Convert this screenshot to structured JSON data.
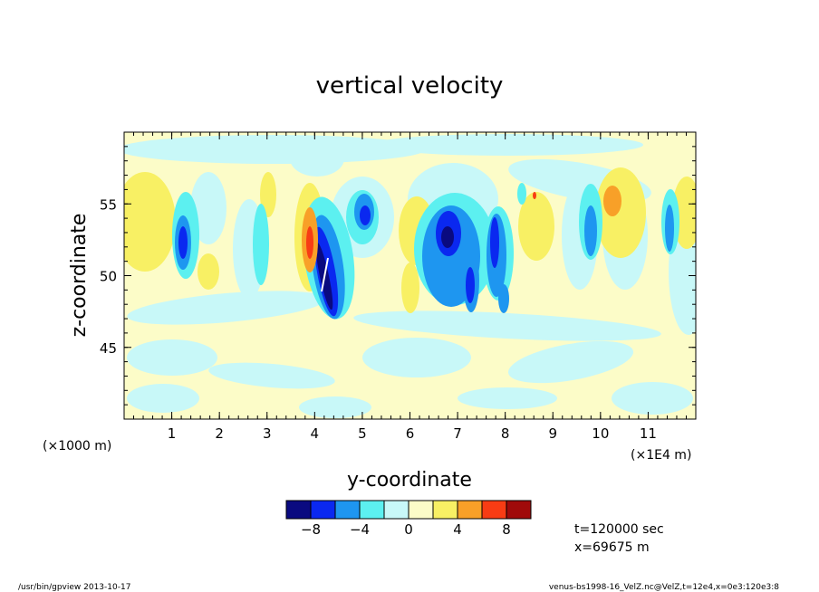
{
  "chart_data": {
    "type": "heatmap",
    "title": "vertical velocity",
    "xlabel": "y-coordinate",
    "ylabel": "z-coordinate",
    "x_unit_note": "(×1000 m)",
    "x_scale_note": "(×1E4 m)",
    "xlim": [
      0,
      12
    ],
    "ylim": [
      40,
      60
    ],
    "x_ticks": [
      "1",
      "2",
      "3",
      "4",
      "5",
      "6",
      "7",
      "8",
      "9",
      "10",
      "11"
    ],
    "y_ticks": [
      "45",
      "50",
      "55"
    ],
    "colorbar": {
      "colors": [
        "#0a0a80",
        "#0a28f0",
        "#1e96f0",
        "#5cf0f0",
        "#c8f8f8",
        "#fcfcc8",
        "#f8f064",
        "#f8a028",
        "#f83c14",
        "#a00a0a"
      ],
      "tick_labels": [
        "−8",
        "−4",
        "0",
        "4",
        "8"
      ]
    },
    "annotations": [
      "t=120000 sec",
      "x=69675 m"
    ]
  },
  "footer": {
    "left": "/usr/bin/gpview  2013-10-17",
    "right": "venus-bs1998-16_VelZ.nc@VelZ,t=12e4,x=0e3:120e3:8"
  }
}
